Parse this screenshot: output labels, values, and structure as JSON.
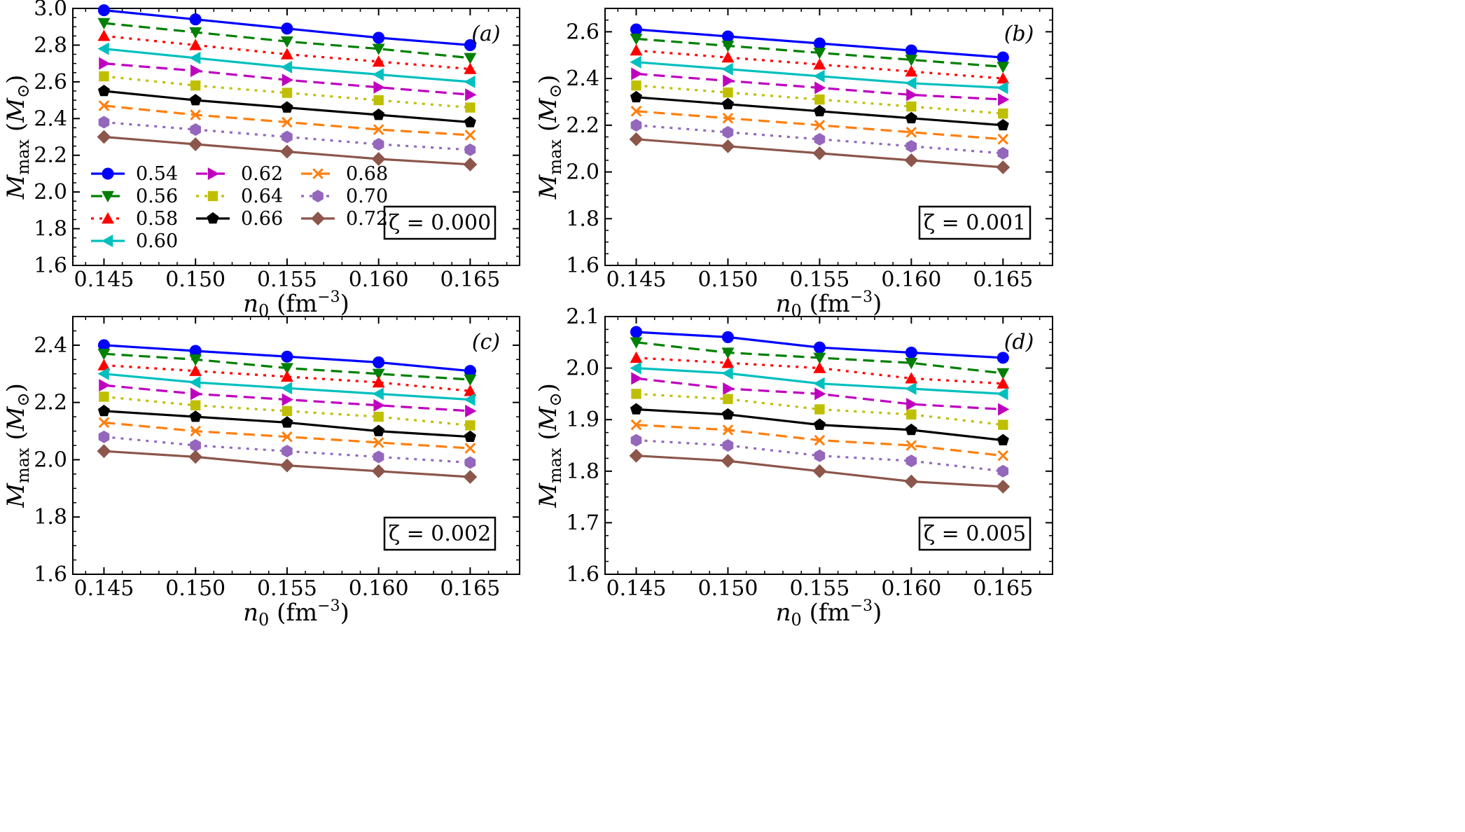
{
  "chart_data": [
    {
      "type": "line",
      "panel_label": "(a)",
      "zeta_label": "ζ = 0.000",
      "xlabel": "n0 (fm−3)",
      "ylabel": "Mmax (M⊙)",
      "x": [
        0.145,
        0.15,
        0.155,
        0.16,
        0.165
      ],
      "x_tick_labels": [
        "0.145",
        "0.150",
        "0.155",
        "0.160",
        "0.165"
      ],
      "ylim": [
        1.6,
        3.0
      ],
      "y_ticks": [
        1.6,
        1.8,
        2.0,
        2.2,
        2.4,
        2.6,
        2.8,
        3.0
      ],
      "y_tick_labels": [
        "1.6",
        "1.8",
        "2.0",
        "2.2",
        "2.4",
        "2.6",
        "2.8",
        "3.0"
      ],
      "legend": "left",
      "series": [
        {
          "name": "0.54",
          "values": [
            2.99,
            2.94,
            2.89,
            2.84,
            2.8
          ]
        },
        {
          "name": "0.56",
          "values": [
            2.92,
            2.87,
            2.82,
            2.78,
            2.73
          ]
        },
        {
          "name": "0.58",
          "values": [
            2.85,
            2.8,
            2.75,
            2.71,
            2.67
          ]
        },
        {
          "name": "0.60",
          "values": [
            2.78,
            2.73,
            2.68,
            2.64,
            2.6
          ]
        },
        {
          "name": "0.62",
          "values": [
            2.7,
            2.66,
            2.61,
            2.57,
            2.53
          ]
        },
        {
          "name": "0.64",
          "values": [
            2.63,
            2.58,
            2.54,
            2.5,
            2.46
          ]
        },
        {
          "name": "0.66",
          "values": [
            2.55,
            2.5,
            2.46,
            2.42,
            2.38
          ]
        },
        {
          "name": "0.68",
          "values": [
            2.47,
            2.42,
            2.38,
            2.34,
            2.31
          ]
        },
        {
          "name": "0.70",
          "values": [
            2.38,
            2.34,
            2.3,
            2.26,
            2.23
          ]
        },
        {
          "name": "0.72",
          "values": [
            2.3,
            2.26,
            2.22,
            2.18,
            2.15
          ]
        }
      ]
    },
    {
      "type": "line",
      "panel_label": "(b)",
      "zeta_label": "ζ = 0.001",
      "xlabel": "n0 (fm−3)",
      "ylabel": "Mmax (M⊙)",
      "x": [
        0.145,
        0.15,
        0.155,
        0.16,
        0.165
      ],
      "x_tick_labels": [
        "0.145",
        "0.150",
        "0.155",
        "0.160",
        "0.165"
      ],
      "ylim": [
        1.6,
        2.7
      ],
      "y_ticks": [
        1.6,
        1.8,
        2.0,
        2.2,
        2.4,
        2.6
      ],
      "y_tick_labels": [
        "1.6",
        "1.8",
        "2.0",
        "2.2",
        "2.4",
        "2.6"
      ],
      "series": [
        {
          "name": "0.54",
          "values": [
            2.61,
            2.58,
            2.55,
            2.52,
            2.49
          ]
        },
        {
          "name": "0.56",
          "values": [
            2.57,
            2.54,
            2.51,
            2.48,
            2.45
          ]
        },
        {
          "name": "0.58",
          "values": [
            2.52,
            2.49,
            2.46,
            2.43,
            2.4
          ]
        },
        {
          "name": "0.60",
          "values": [
            2.47,
            2.44,
            2.41,
            2.38,
            2.36
          ]
        },
        {
          "name": "0.62",
          "values": [
            2.42,
            2.39,
            2.36,
            2.33,
            2.31
          ]
        },
        {
          "name": "0.64",
          "values": [
            2.37,
            2.34,
            2.31,
            2.28,
            2.25
          ]
        },
        {
          "name": "0.66",
          "values": [
            2.32,
            2.29,
            2.26,
            2.23,
            2.2
          ]
        },
        {
          "name": "0.68",
          "values": [
            2.26,
            2.23,
            2.2,
            2.17,
            2.14
          ]
        },
        {
          "name": "0.70",
          "values": [
            2.2,
            2.17,
            2.14,
            2.11,
            2.08
          ]
        },
        {
          "name": "0.72",
          "values": [
            2.14,
            2.11,
            2.08,
            2.05,
            2.02
          ]
        }
      ]
    },
    {
      "type": "line",
      "panel_label": "(c)",
      "zeta_label": "ζ = 0.002",
      "xlabel": "n0 (fm−3)",
      "ylabel": "Mmax (M⊙)",
      "x": [
        0.145,
        0.15,
        0.155,
        0.16,
        0.165
      ],
      "x_tick_labels": [
        "0.145",
        "0.150",
        "0.155",
        "0.160",
        "0.165"
      ],
      "ylim": [
        1.6,
        2.5
      ],
      "y_ticks": [
        1.6,
        1.8,
        2.0,
        2.2,
        2.4
      ],
      "y_tick_labels": [
        "1.6",
        "1.8",
        "2.0",
        "2.2",
        "2.4"
      ],
      "series": [
        {
          "name": "0.54",
          "values": [
            2.4,
            2.38,
            2.36,
            2.34,
            2.31
          ]
        },
        {
          "name": "0.56",
          "values": [
            2.37,
            2.35,
            2.32,
            2.3,
            2.28
          ]
        },
        {
          "name": "0.58",
          "values": [
            2.33,
            2.31,
            2.29,
            2.27,
            2.24
          ]
        },
        {
          "name": "0.60",
          "values": [
            2.3,
            2.27,
            2.25,
            2.23,
            2.21
          ]
        },
        {
          "name": "0.62",
          "values": [
            2.26,
            2.23,
            2.21,
            2.19,
            2.17
          ]
        },
        {
          "name": "0.64",
          "values": [
            2.22,
            2.19,
            2.17,
            2.15,
            2.12
          ]
        },
        {
          "name": "0.66",
          "values": [
            2.17,
            2.15,
            2.13,
            2.1,
            2.08
          ]
        },
        {
          "name": "0.68",
          "values": [
            2.13,
            2.1,
            2.08,
            2.06,
            2.04
          ]
        },
        {
          "name": "0.70",
          "values": [
            2.08,
            2.05,
            2.03,
            2.01,
            1.99
          ]
        },
        {
          "name": "0.72",
          "values": [
            2.03,
            2.01,
            1.98,
            1.96,
            1.94
          ]
        }
      ]
    },
    {
      "type": "line",
      "panel_label": "(d)",
      "zeta_label": "ζ = 0.005",
      "xlabel": "n0 (fm−3)",
      "ylabel": "Mmax (M⊙)",
      "x": [
        0.145,
        0.15,
        0.155,
        0.16,
        0.165
      ],
      "x_tick_labels": [
        "0.145",
        "0.150",
        "0.155",
        "0.160",
        "0.165"
      ],
      "ylim": [
        1.6,
        2.1
      ],
      "y_ticks": [
        1.6,
        1.7,
        1.8,
        1.9,
        2.0,
        2.1
      ],
      "y_tick_labels": [
        "1.6",
        "1.7",
        "1.8",
        "1.9",
        "2.0",
        "2.1"
      ],
      "series": [
        {
          "name": "0.54",
          "values": [
            2.07,
            2.06,
            2.04,
            2.03,
            2.02
          ]
        },
        {
          "name": "0.56",
          "values": [
            2.05,
            2.03,
            2.02,
            2.01,
            1.99
          ]
        },
        {
          "name": "0.58",
          "values": [
            2.02,
            2.01,
            2.0,
            1.98,
            1.97
          ]
        },
        {
          "name": "0.60",
          "values": [
            2.0,
            1.99,
            1.97,
            1.96,
            1.95
          ]
        },
        {
          "name": "0.62",
          "values": [
            1.98,
            1.96,
            1.95,
            1.93,
            1.92
          ]
        },
        {
          "name": "0.64",
          "values": [
            1.95,
            1.94,
            1.92,
            1.91,
            1.89
          ]
        },
        {
          "name": "0.66",
          "values": [
            1.92,
            1.91,
            1.89,
            1.88,
            1.86
          ]
        },
        {
          "name": "0.68",
          "values": [
            1.89,
            1.88,
            1.86,
            1.85,
            1.83
          ]
        },
        {
          "name": "0.70",
          "values": [
            1.86,
            1.85,
            1.83,
            1.82,
            1.8
          ]
        },
        {
          "name": "0.72",
          "values": [
            1.83,
            1.82,
            1.8,
            1.78,
            1.77
          ]
        }
      ]
    }
  ],
  "series_styles": [
    {
      "color": "#0000ff",
      "dash": "solid",
      "marker": "circle"
    },
    {
      "color": "#008000",
      "dash": "dashed",
      "marker": "triangle-down"
    },
    {
      "color": "#ff0000",
      "dash": "dotted",
      "marker": "triangle-up"
    },
    {
      "color": "#00bfbf",
      "dash": "solid",
      "marker": "triangle-left"
    },
    {
      "color": "#bf00bf",
      "dash": "dashed",
      "marker": "triangle-right"
    },
    {
      "color": "#bfbf00",
      "dash": "dotted",
      "marker": "square"
    },
    {
      "color": "#000000",
      "dash": "solid",
      "marker": "pentagon"
    },
    {
      "color": "#ff7f0e",
      "dash": "dashed",
      "marker": "x"
    },
    {
      "color": "#9467bd",
      "dash": "dotted",
      "marker": "hexagon"
    },
    {
      "color": "#8c564b",
      "dash": "solid",
      "marker": "diamond"
    }
  ]
}
